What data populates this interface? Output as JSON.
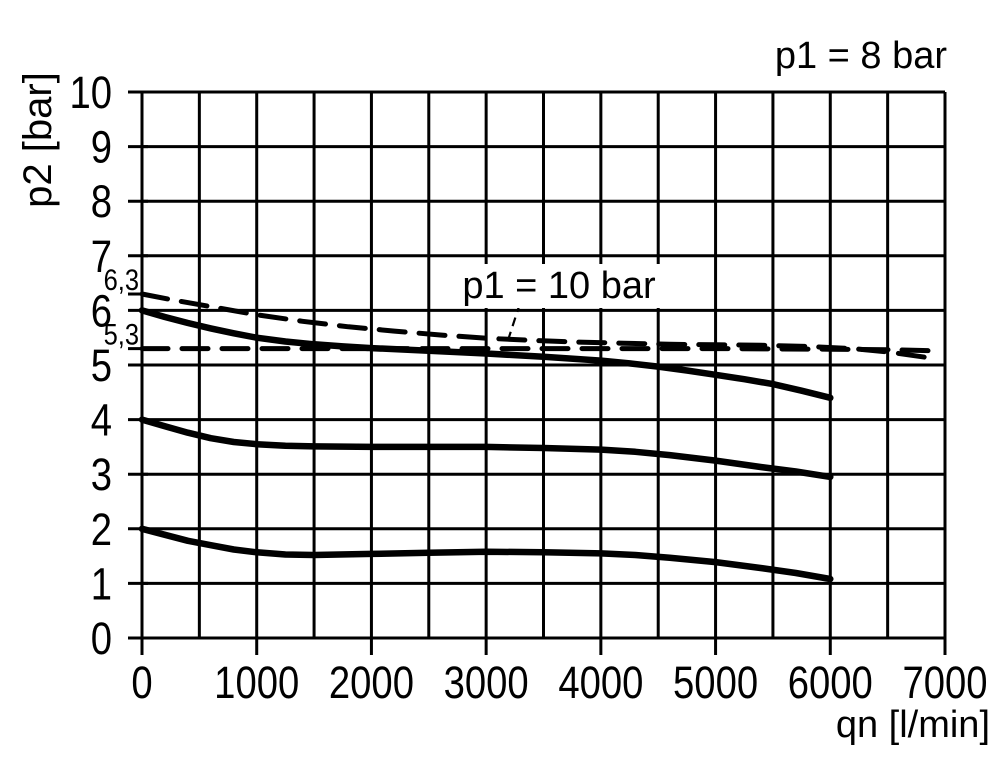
{
  "chart_data": {
    "type": "line",
    "title": "p1 = 8 bar",
    "xlabel": "qn [l/min]",
    "ylabel": "p2 [bar]",
    "xlim": [
      0,
      7000
    ],
    "ylim": [
      0,
      10
    ],
    "grid": {
      "x_step": 500,
      "y_step": 1,
      "on": true
    },
    "legend_position": "none",
    "colors": {
      "ink": "#000000",
      "background": "#ffffff"
    },
    "x_ticks": [
      {
        "v": 0,
        "label": "0"
      },
      {
        "v": 1000,
        "label": "1000"
      },
      {
        "v": 2000,
        "label": "2000"
      },
      {
        "v": 3000,
        "label": "3000"
      },
      {
        "v": 4000,
        "label": "4000"
      },
      {
        "v": 5000,
        "label": "5000"
      },
      {
        "v": 6000,
        "label": "6000"
      },
      {
        "v": 7000,
        "label": "7000"
      }
    ],
    "y_ticks": [
      {
        "v": 0,
        "label": "0"
      },
      {
        "v": 1,
        "label": "1"
      },
      {
        "v": 2,
        "label": "2"
      },
      {
        "v": 3,
        "label": "3"
      },
      {
        "v": 4,
        "label": "4"
      },
      {
        "v": 5,
        "label": "5"
      },
      {
        "v": 6,
        "label": "6"
      },
      {
        "v": 7,
        "label": "7"
      },
      {
        "v": 8,
        "label": "8"
      },
      {
        "v": 9,
        "label": "9"
      },
      {
        "v": 10,
        "label": "10"
      }
    ],
    "y_extra_ticks": [
      {
        "v": 6.3,
        "label": "6,3"
      },
      {
        "v": 5.3,
        "label": "5,3"
      }
    ],
    "annotation": {
      "text": "p1 = 10 bar",
      "x": 3635,
      "y": 6.45,
      "leader": {
        "x1": 3295,
        "y1": 6.13,
        "x2": 3190,
        "y2": 5.45
      }
    },
    "series": [
      {
        "name": "p1-8-bar-outlet-6-bar",
        "style": "solid",
        "points": [
          [
            0,
            6.0
          ],
          [
            200,
            5.88
          ],
          [
            400,
            5.77
          ],
          [
            600,
            5.67
          ],
          [
            800,
            5.58
          ],
          [
            1000,
            5.5
          ],
          [
            1250,
            5.43
          ],
          [
            1500,
            5.38
          ],
          [
            1750,
            5.34
          ],
          [
            2000,
            5.31
          ],
          [
            2500,
            5.26
          ],
          [
            3000,
            5.21
          ],
          [
            3500,
            5.15
          ],
          [
            4000,
            5.08
          ],
          [
            4250,
            5.03
          ],
          [
            4500,
            4.97
          ],
          [
            4750,
            4.9
          ],
          [
            5000,
            4.82
          ],
          [
            5250,
            4.74
          ],
          [
            5500,
            4.65
          ],
          [
            5750,
            4.53
          ],
          [
            6000,
            4.4
          ]
        ]
      },
      {
        "name": "p1-10-bar-dashed",
        "style": "dashed",
        "points": [
          [
            0,
            6.3
          ],
          [
            300,
            6.18
          ],
          [
            600,
            6.07
          ],
          [
            1000,
            5.92
          ],
          [
            1400,
            5.8
          ],
          [
            1800,
            5.7
          ],
          [
            2200,
            5.62
          ],
          [
            2600,
            5.55
          ],
          [
            3000,
            5.49
          ],
          [
            3400,
            5.45
          ],
          [
            3800,
            5.42
          ],
          [
            4200,
            5.4
          ],
          [
            4600,
            5.38
          ],
          [
            5000,
            5.37
          ],
          [
            5400,
            5.36
          ],
          [
            5800,
            5.34
          ],
          [
            6200,
            5.3
          ],
          [
            6500,
            5.24
          ],
          [
            6900,
            5.12
          ]
        ]
      },
      {
        "name": "outlet-5-3-bar-dashed",
        "style": "dashed",
        "points": [
          [
            0,
            5.3
          ],
          [
            1000,
            5.3
          ],
          [
            2000,
            5.3
          ],
          [
            3000,
            5.3
          ],
          [
            4000,
            5.3
          ],
          [
            5000,
            5.3
          ],
          [
            6000,
            5.29
          ],
          [
            6500,
            5.28
          ],
          [
            6900,
            5.26
          ]
        ]
      },
      {
        "name": "outlet-4-bar",
        "style": "solid",
        "points": [
          [
            0,
            4.0
          ],
          [
            200,
            3.88
          ],
          [
            400,
            3.76
          ],
          [
            600,
            3.66
          ],
          [
            800,
            3.59
          ],
          [
            1000,
            3.55
          ],
          [
            1250,
            3.52
          ],
          [
            1500,
            3.51
          ],
          [
            2000,
            3.5
          ],
          [
            2500,
            3.5
          ],
          [
            3000,
            3.5
          ],
          [
            3500,
            3.48
          ],
          [
            4000,
            3.45
          ],
          [
            4300,
            3.41
          ],
          [
            4600,
            3.35
          ],
          [
            5000,
            3.25
          ],
          [
            5400,
            3.13
          ],
          [
            5700,
            3.05
          ],
          [
            6000,
            2.95
          ]
        ]
      },
      {
        "name": "outlet-2-bar",
        "style": "solid",
        "points": [
          [
            0,
            2.0
          ],
          [
            200,
            1.89
          ],
          [
            400,
            1.78
          ],
          [
            600,
            1.7
          ],
          [
            800,
            1.62
          ],
          [
            1000,
            1.57
          ],
          [
            1250,
            1.53
          ],
          [
            1500,
            1.52
          ],
          [
            2000,
            1.54
          ],
          [
            2500,
            1.56
          ],
          [
            3000,
            1.58
          ],
          [
            3500,
            1.57
          ],
          [
            4000,
            1.55
          ],
          [
            4300,
            1.52
          ],
          [
            4600,
            1.47
          ],
          [
            5000,
            1.39
          ],
          [
            5400,
            1.28
          ],
          [
            5700,
            1.19
          ],
          [
            6000,
            1.08
          ]
        ]
      }
    ]
  }
}
